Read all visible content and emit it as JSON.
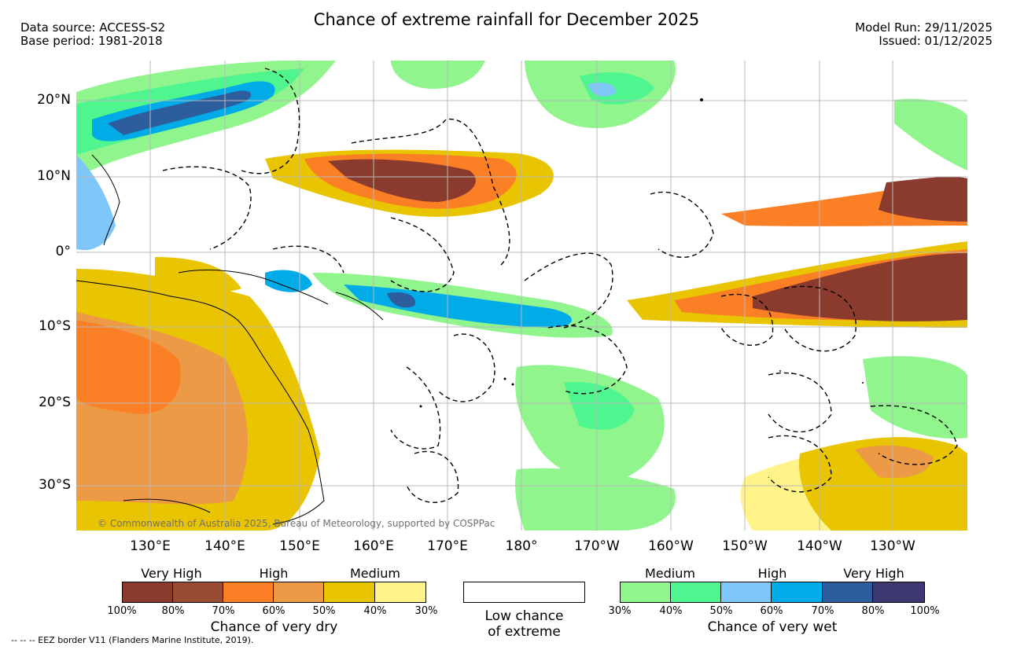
{
  "header": {
    "title": "Chance of extreme rainfall for December 2025",
    "data_source": "Data source: ACCESS-S2",
    "base_period": "Base period: 1981-2018",
    "model_run": "Model Run: 29/11/2025",
    "issued": "Issued: 01/12/2025"
  },
  "map": {
    "lat_labels": [
      "20°N",
      "10°N",
      "0°",
      "10°S",
      "20°S",
      "30°S"
    ],
    "lon_labels": [
      "130°E",
      "140°E",
      "150°E",
      "160°E",
      "170°E",
      "180°",
      "170°W",
      "160°W",
      "150°W",
      "140°W",
      "130°W"
    ],
    "copyright": "© Commonwealth of Australia 2025, Bureau of Meteorology, supported by COSPPac",
    "eez_note": "-- -- -- EEZ border V11 (Flanders Marine Institute, 2019)."
  },
  "legend": {
    "dry": {
      "caption": "Chance of very dry",
      "groups": [
        "Very High",
        "High",
        "Medium"
      ],
      "colors": [
        "#8b3a2e",
        "#9a4b33",
        "#fb7f25",
        "#ec9a45",
        "#e9c400",
        "#fff38a"
      ],
      "ticks": [
        "100%",
        "80%",
        "70%",
        "60%",
        "50%",
        "40%",
        "30%"
      ]
    },
    "low": {
      "caption_line1": "Low chance",
      "caption_line2": "of extreme"
    },
    "wet": {
      "caption": "Chance of very wet",
      "groups": [
        "Medium",
        "High",
        "Very High"
      ],
      "colors": [
        "#8ff58c",
        "#4ff58f",
        "#7fc7f8",
        "#00abe8",
        "#2e5d9e",
        "#3d3872"
      ],
      "ticks": [
        "30%",
        "40%",
        "50%",
        "60%",
        "70%",
        "80%",
        "100%"
      ]
    }
  }
}
